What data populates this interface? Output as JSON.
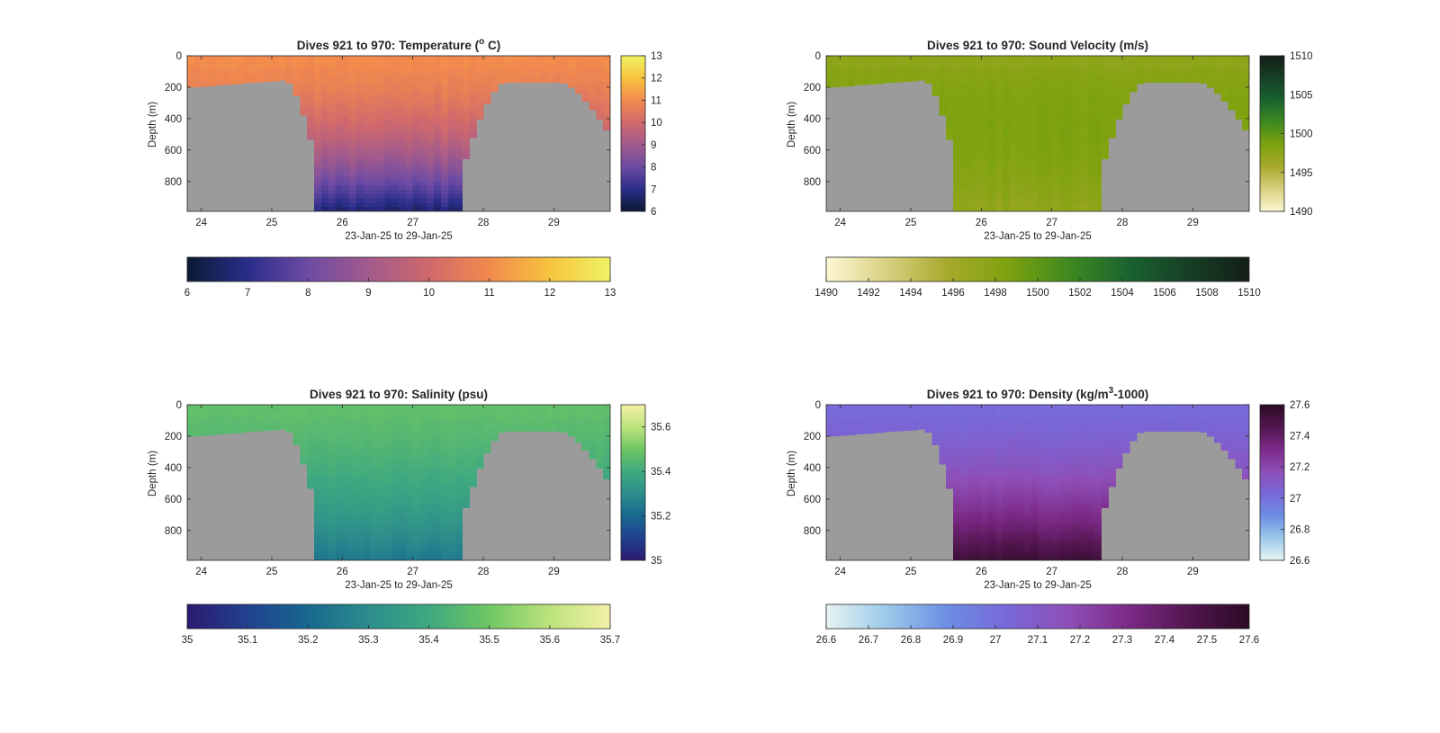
{
  "figure": {
    "background": "#ffffff",
    "land_color": "#9b9b9b",
    "axis_color": "#262626"
  },
  "chart_data": [
    {
      "type": "heatmap",
      "title_parts": [
        "Dives 921 to 970: Temperature (",
        "o",
        " C)"
      ],
      "title_sup_index": 1,
      "xlabel": "23-Jan-25 to 29-Jan-25",
      "ylabel": "Depth (m)",
      "xlim": [
        23.8,
        29.8
      ],
      "ylim": [
        0,
        990
      ],
      "y_reversed": true,
      "xticks": [
        "24",
        "25",
        "26",
        "27",
        "28",
        "29"
      ],
      "yticks": [
        "0",
        "200",
        "400",
        "600",
        "800"
      ],
      "clim": [
        6,
        13
      ],
      "colorbar_ticks": [
        "6",
        "7",
        "8",
        "9",
        "10",
        "11",
        "12",
        "13"
      ],
      "horizontal_colorbar_ticks": [
        "6",
        "7",
        "8",
        "9",
        "10",
        "11",
        "12",
        "13"
      ],
      "colormap": [
        "#0b1a33",
        "#2a2d8a",
        "#6d4ba4",
        "#a25a8c",
        "#d0696c",
        "#f28a4d",
        "#f7c43e",
        "#eef364"
      ],
      "profile_top": [
        11.0,
        10.8
      ],
      "profile_bottom": [
        10.6,
        6.6
      ],
      "variability": 0.35
    },
    {
      "type": "heatmap",
      "title_parts": [
        "Dives 921 to 970: Sound Velocity (m/s)"
      ],
      "title_sup_index": -1,
      "xlabel": "23-Jan-25 to 29-Jan-25",
      "ylabel": "Depth (m)",
      "xlim": [
        23.8,
        29.8
      ],
      "ylim": [
        0,
        990
      ],
      "y_reversed": true,
      "xticks": [
        "24",
        "25",
        "26",
        "27",
        "28",
        "29"
      ],
      "yticks": [
        "0",
        "200",
        "400",
        "600",
        "800"
      ],
      "clim": [
        1490,
        1510
      ],
      "colorbar_ticks": [
        "1490",
        "1495",
        "1500",
        "1505",
        "1510"
      ],
      "horizontal_colorbar_ticks": [
        "1490",
        "1492",
        "1494",
        "1496",
        "1498",
        "1500",
        "1502",
        "1504",
        "1506",
        "1508",
        "1510"
      ],
      "colormap": [
        "#fdf8d3",
        "#d8d082",
        "#a7aa2c",
        "#7ea20e",
        "#3f8a1f",
        "#1a6330",
        "#173f26",
        "#141f17"
      ],
      "profile_top": [
        1497.5,
        1499.5
      ],
      "profile_bottom": [
        1500.0,
        1497.0
      ],
      "variability": 0.7
    },
    {
      "type": "heatmap",
      "title_parts": [
        "Dives 921 to 970: Salinity (psu)"
      ],
      "title_sup_index": -1,
      "xlabel": "23-Jan-25 to 29-Jan-25",
      "ylabel": "Depth (m)",
      "xlim": [
        23.8,
        29.8
      ],
      "ylim": [
        0,
        990
      ],
      "y_reversed": true,
      "xticks": [
        "24",
        "25",
        "26",
        "27",
        "28",
        "29"
      ],
      "yticks": [
        "0",
        "200",
        "400",
        "600",
        "800"
      ],
      "clim": [
        35,
        35.7
      ],
      "colorbar_ticks": [
        "35",
        "35.2",
        "35.4",
        "35.6"
      ],
      "horizontal_colorbar_ticks": [
        "35",
        "35.1",
        "35.2",
        "35.3",
        "35.4",
        "35.5",
        "35.6",
        "35.7"
      ],
      "colormap": [
        "#2b1a6e",
        "#21418f",
        "#17688f",
        "#2c8d8b",
        "#3fa980",
        "#6fc762",
        "#bde37d",
        "#f4f0a6"
      ],
      "profile_top": [
        35.47,
        35.46
      ],
      "profile_bottom": [
        35.42,
        35.24
      ],
      "variability": 0.02
    },
    {
      "type": "heatmap",
      "title_parts": [
        "Dives 921 to 970: Density (kg/m",
        "3",
        "-1000)"
      ],
      "title_sup_index": 1,
      "xlabel": "23-Jan-25 to 29-Jan-25",
      "ylabel": "Depth (m)",
      "xlim": [
        23.8,
        29.8
      ],
      "ylim": [
        0,
        990
      ],
      "y_reversed": true,
      "xticks": [
        "24",
        "25",
        "26",
        "27",
        "28",
        "29"
      ],
      "yticks": [
        "0",
        "200",
        "400",
        "600",
        "800"
      ],
      "clim": [
        26.6,
        27.6
      ],
      "colorbar_ticks": [
        "26.6",
        "26.8",
        "27",
        "27.2",
        "27.4",
        "27.6"
      ],
      "horizontal_colorbar_ticks": [
        "26.6",
        "26.7",
        "26.8",
        "26.9",
        "27",
        "27.1",
        "27.2",
        "27.3",
        "27.4",
        "27.5",
        "27.6"
      ],
      "colormap": [
        "#e7f3f2",
        "#9cc9ea",
        "#6c8ee4",
        "#7868d8",
        "#8e4fb7",
        "#7c2a87",
        "#52164f",
        "#2b0a24"
      ],
      "profile_top": [
        27.02,
        27.05
      ],
      "profile_bottom": [
        27.1,
        27.55
      ],
      "variability": 0.03
    }
  ]
}
